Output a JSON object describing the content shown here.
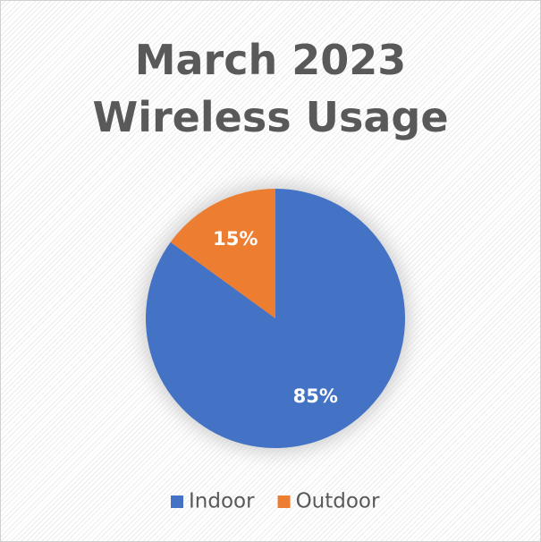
{
  "chart_data": {
    "type": "pie",
    "title": "March 2023 Wireless Usage",
    "categories": [
      "Indoor",
      "Outdoor"
    ],
    "values": [
      85,
      15
    ],
    "value_labels": [
      "85%",
      "15%"
    ],
    "colors": [
      "#4472c4",
      "#ed7d31"
    ],
    "legend": "bottom"
  }
}
